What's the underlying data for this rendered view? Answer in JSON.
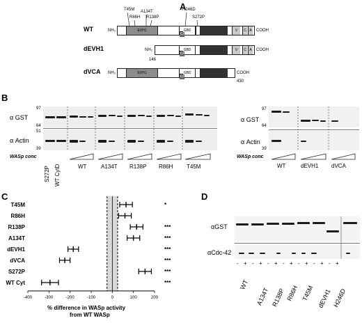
{
  "panelA": {
    "letter": "A",
    "mutations_top": [
      "T45M",
      "R86H",
      "A134T",
      "R138P",
      "H246D",
      "S272P"
    ],
    "constructs": [
      {
        "name": "WT",
        "nterm": "NH₂",
        "cterm": "COOH",
        "domains": [
          "EVH1",
          "GBD",
          "Cr",
          "V",
          "C",
          "A"
        ]
      },
      {
        "name": "dEVH1",
        "nterm": "NH₂",
        "cterm": "COOH",
        "start": "146",
        "domains": [
          "GBD",
          "Cr",
          "V",
          "C",
          "A"
        ]
      },
      {
        "name": "dVCA",
        "nterm": "NH₂",
        "cterm": "COOH",
        "end": "430",
        "domains": [
          "EVH1",
          "GBD",
          "Cr"
        ]
      }
    ]
  },
  "panelB": {
    "letter": "B",
    "left_gel": {
      "row_labels": [
        "α GST",
        "α Actin"
      ],
      "markers_top": [
        "97",
        "64"
      ],
      "markers_bottom": [
        "51",
        "39"
      ],
      "conc_label": "WASp conc",
      "rotated_labels": [
        "S272P",
        "WT CytD"
      ],
      "lanes": [
        "WT",
        "A134T",
        "R138P",
        "R86H",
        "T45M"
      ]
    },
    "right_gel": {
      "row_labels": [
        "α GST",
        "α Actin"
      ],
      "markers": [
        "97",
        "64",
        "39"
      ],
      "conc_label": "WASp conc",
      "lanes": [
        "WT",
        "dEVH1",
        "dVCA"
      ]
    }
  },
  "panelC": {
    "letter": "C",
    "xlabel_line1": "% difference in WASp activity",
    "xlabel_line2": "from WT WASp",
    "x_ticks": [
      "-400",
      "-300",
      "-200",
      "-100",
      "0",
      "100",
      "200"
    ]
  },
  "chart_data": {
    "type": "scatter",
    "title": "",
    "xlabel": "% difference in WASp activity from WT WASp",
    "ylabel": "",
    "xlim": [
      -400,
      200
    ],
    "categories": [
      "T45M",
      "R86H",
      "R138P",
      "A134T",
      "dEVH1",
      "dVCA",
      "S272P",
      "WT Cyt"
    ],
    "values": [
      65,
      60,
      115,
      100,
      -185,
      -225,
      155,
      -295
    ],
    "errors": [
      30,
      30,
      30,
      30,
      25,
      25,
      30,
      40
    ],
    "significance": [
      "*",
      "",
      "***",
      "***",
      "***",
      "***",
      "***",
      "***"
    ],
    "shaded_band": [
      -25,
      25
    ]
  },
  "panelD": {
    "letter": "D",
    "row_labels": [
      "αGST",
      "αCdc-42"
    ],
    "signs": [
      "-",
      "+"
    ],
    "lanes": [
      "WT",
      "A134T",
      "R138P",
      "R86H",
      "T45M",
      "dEVH1",
      "H246D"
    ]
  }
}
